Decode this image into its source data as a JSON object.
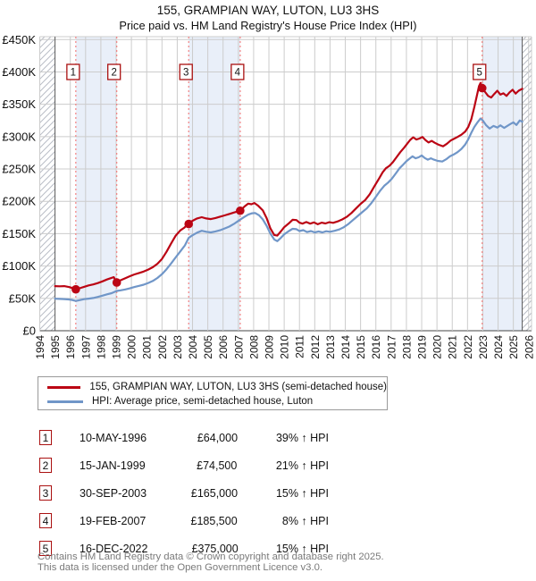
{
  "title": "155, GRAMPIAN WAY, LUTON, LU3 3HS",
  "subtitle": "Price paid vs. HM Land Registry's House Price Index (HPI)",
  "chart_data": {
    "type": "line",
    "title": "Price paid vs. HM Land Registry's House Price Index (HPI)",
    "ylim": [
      0,
      450000
    ],
    "y_ticks_k": [
      0,
      50,
      100,
      150,
      200,
      250,
      300,
      350,
      400,
      450
    ],
    "y_tick_labels": [
      "£0",
      "£50K",
      "£100K",
      "£150K",
      "£200K",
      "£250K",
      "£300K",
      "£350K",
      "£400K",
      "£450K"
    ],
    "x_tick_years": [
      1994,
      1995,
      1996,
      1997,
      1998,
      1999,
      2000,
      2001,
      2002,
      2003,
      2004,
      2005,
      2006,
      2007,
      2008,
      2009,
      2010,
      2011,
      2012,
      2013,
      2014,
      2015,
      2016,
      2017,
      2018,
      2019,
      2020,
      2021,
      2022,
      2023,
      2024,
      2025,
      2026
    ],
    "data_start_year": 1995.0,
    "data_end_year": 2025.58,
    "shaded_bands": [
      [
        1996.36,
        1999.04
      ],
      [
        2003.75,
        2007.12
      ],
      [
        2022.96,
        2025.58
      ]
    ],
    "hatched_bands": [
      [
        1994,
        1995.0
      ],
      [
        2025.58,
        2026.19
      ]
    ],
    "colors": {
      "price_line": "#bb0514",
      "hpi_line": "#7096c8",
      "sale_dash": "#f28080",
      "band_fill": "#e9eff9",
      "grid": "#cccccc",
      "grid_dark": "#5a5a5a",
      "hatch": "#b9bdc6",
      "badge_border": "#aa1111"
    },
    "sales": [
      {
        "label": "1",
        "date": "10-MAY-1996",
        "year": 1996.36,
        "price": 64000,
        "price_label": "£64,000",
        "hpi_delta": "39% ↑ HPI"
      },
      {
        "label": "2",
        "date": "15-JAN-1999",
        "year": 1999.04,
        "price": 74500,
        "price_label": "£74,500",
        "hpi_delta": "21% ↑ HPI"
      },
      {
        "label": "3",
        "date": "30-SEP-2003",
        "year": 2003.75,
        "price": 165000,
        "price_label": "£165,000",
        "hpi_delta": "15% ↑ HPI"
      },
      {
        "label": "4",
        "date": "19-FEB-2007",
        "year": 2007.12,
        "price": 185500,
        "price_label": "£185,500",
        "hpi_delta": "8% ↑ HPI"
      },
      {
        "label": "5",
        "date": "16-DEC-2022",
        "year": 2022.96,
        "price": 375000,
        "price_label": "£375,000",
        "hpi_delta": "15% ↑ HPI"
      }
    ],
    "series": [
      {
        "name": "155, GRAMPIAN WAY, LUTON, LU3 3HS (semi-detached house)",
        "color": "#bb0514",
        "points_year_gbpK": [
          [
            1995.0,
            69
          ],
          [
            1995.3,
            68.6
          ],
          [
            1995.6,
            68.9
          ],
          [
            1995.9,
            67.6
          ],
          [
            1996.1,
            66.3
          ],
          [
            1996.36,
            64
          ],
          [
            1996.6,
            65.6
          ],
          [
            1996.9,
            67.8
          ],
          [
            1997.2,
            70
          ],
          [
            1997.5,
            71.6
          ],
          [
            1997.8,
            73.6
          ],
          [
            1998.1,
            76.2
          ],
          [
            1998.4,
            79.2
          ],
          [
            1998.65,
            81.3
          ],
          [
            1998.85,
            82.7
          ],
          [
            1999.04,
            74.5
          ],
          [
            1999.3,
            78
          ],
          [
            1999.6,
            81.2
          ],
          [
            1999.9,
            84.3
          ],
          [
            2000.2,
            87
          ],
          [
            2000.5,
            89.2
          ],
          [
            2000.8,
            91.4
          ],
          [
            2001.1,
            94.5
          ],
          [
            2001.4,
            98.3
          ],
          [
            2001.7,
            103.5
          ],
          [
            2002.0,
            111
          ],
          [
            2002.3,
            122
          ],
          [
            2002.6,
            135
          ],
          [
            2002.9,
            147
          ],
          [
            2003.2,
            155
          ],
          [
            2003.45,
            159
          ],
          [
            2003.6,
            162.5
          ],
          [
            2003.75,
            165
          ],
          [
            2004.0,
            170
          ],
          [
            2004.3,
            173.5
          ],
          [
            2004.6,
            175.5
          ],
          [
            2004.9,
            173.5
          ],
          [
            2005.2,
            172.5
          ],
          [
            2005.5,
            174.2
          ],
          [
            2005.8,
            176.3
          ],
          [
            2006.1,
            178.2
          ],
          [
            2006.4,
            180.4
          ],
          [
            2006.7,
            182.6
          ],
          [
            2006.95,
            184.3
          ],
          [
            2007.12,
            185.5
          ],
          [
            2007.4,
            192
          ],
          [
            2007.65,
            196.5
          ],
          [
            2007.85,
            195.5
          ],
          [
            2008.05,
            197.5
          ],
          [
            2008.3,
            193
          ],
          [
            2008.6,
            186
          ],
          [
            2008.85,
            174
          ],
          [
            2009.1,
            158
          ],
          [
            2009.35,
            148
          ],
          [
            2009.55,
            147
          ],
          [
            2009.8,
            154
          ],
          [
            2010.0,
            160
          ],
          [
            2010.3,
            166
          ],
          [
            2010.55,
            171.5
          ],
          [
            2010.8,
            171
          ],
          [
            2011.0,
            167
          ],
          [
            2011.2,
            165.5
          ],
          [
            2011.45,
            168
          ],
          [
            2011.7,
            165.5
          ],
          [
            2011.95,
            167.5
          ],
          [
            2012.2,
            164.5
          ],
          [
            2012.45,
            167
          ],
          [
            2012.7,
            165.8
          ],
          [
            2012.95,
            167.8
          ],
          [
            2013.2,
            166.8
          ],
          [
            2013.5,
            169
          ],
          [
            2013.8,
            172
          ],
          [
            2014.1,
            176
          ],
          [
            2014.4,
            182
          ],
          [
            2014.7,
            189
          ],
          [
            2015.0,
            196
          ],
          [
            2015.3,
            202
          ],
          [
            2015.6,
            211
          ],
          [
            2015.9,
            223
          ],
          [
            2016.2,
            235
          ],
          [
            2016.45,
            245
          ],
          [
            2016.65,
            251
          ],
          [
            2016.9,
            255
          ],
          [
            2017.1,
            260
          ],
          [
            2017.35,
            268
          ],
          [
            2017.6,
            276
          ],
          [
            2017.85,
            283
          ],
          [
            2018.05,
            289
          ],
          [
            2018.25,
            295
          ],
          [
            2018.45,
            299
          ],
          [
            2018.65,
            295.5
          ],
          [
            2018.85,
            297
          ],
          [
            2019.05,
            299.5
          ],
          [
            2019.25,
            294.5
          ],
          [
            2019.45,
            291
          ],
          [
            2019.65,
            293.5
          ],
          [
            2019.85,
            290.5
          ],
          [
            2020.1,
            287.5
          ],
          [
            2020.4,
            285
          ],
          [
            2020.65,
            289
          ],
          [
            2020.9,
            294
          ],
          [
            2021.1,
            296.5
          ],
          [
            2021.35,
            299.5
          ],
          [
            2021.6,
            303
          ],
          [
            2021.85,
            308
          ],
          [
            2022.05,
            315
          ],
          [
            2022.25,
            327
          ],
          [
            2022.45,
            346
          ],
          [
            2022.6,
            362
          ],
          [
            2022.75,
            378
          ],
          [
            2022.85,
            383
          ],
          [
            2022.96,
            375
          ],
          [
            2023.15,
            369
          ],
          [
            2023.35,
            363
          ],
          [
            2023.55,
            360.5
          ],
          [
            2023.75,
            366
          ],
          [
            2023.95,
            371
          ],
          [
            2024.15,
            365
          ],
          [
            2024.35,
            367
          ],
          [
            2024.55,
            363
          ],
          [
            2024.75,
            368.5
          ],
          [
            2024.95,
            372.5
          ],
          [
            2025.15,
            366.5
          ],
          [
            2025.35,
            371
          ],
          [
            2025.58,
            374
          ]
        ]
      },
      {
        "name": "HPI: Average price, semi-detached house, Luton",
        "color": "#7096c8",
        "points_year_gbpK": [
          [
            1995.0,
            49.5
          ],
          [
            1995.3,
            49.2
          ],
          [
            1995.6,
            48.9
          ],
          [
            1995.9,
            48.3
          ],
          [
            1996.1,
            47.6
          ],
          [
            1996.36,
            46
          ],
          [
            1996.6,
            47.2
          ],
          [
            1996.9,
            48.8
          ],
          [
            1997.2,
            49.6
          ],
          [
            1997.5,
            50.6
          ],
          [
            1997.8,
            52.2
          ],
          [
            1998.1,
            54.2
          ],
          [
            1998.4,
            56.2
          ],
          [
            1998.7,
            58
          ],
          [
            1999.04,
            61.5
          ],
          [
            1999.3,
            62.5
          ],
          [
            1999.6,
            63.8
          ],
          [
            1999.9,
            65.5
          ],
          [
            2000.2,
            67.5
          ],
          [
            2000.5,
            69.3
          ],
          [
            2000.8,
            71.2
          ],
          [
            2001.1,
            73.8
          ],
          [
            2001.4,
            77
          ],
          [
            2001.7,
            81.5
          ],
          [
            2002.0,
            87.5
          ],
          [
            2002.3,
            95
          ],
          [
            2002.6,
            104
          ],
          [
            2002.9,
            113.5
          ],
          [
            2003.2,
            122.5
          ],
          [
            2003.5,
            132
          ],
          [
            2003.75,
            143.5
          ],
          [
            2004.0,
            147.5
          ],
          [
            2004.3,
            151.5
          ],
          [
            2004.6,
            154.5
          ],
          [
            2004.9,
            153
          ],
          [
            2005.2,
            152
          ],
          [
            2005.5,
            153.5
          ],
          [
            2005.8,
            155.3
          ],
          [
            2006.1,
            158
          ],
          [
            2006.4,
            161
          ],
          [
            2006.7,
            165
          ],
          [
            2006.95,
            169
          ],
          [
            2007.12,
            171.8
          ],
          [
            2007.4,
            176
          ],
          [
            2007.65,
            179.5
          ],
          [
            2007.9,
            181.5
          ],
          [
            2008.1,
            182
          ],
          [
            2008.35,
            178.5
          ],
          [
            2008.6,
            172
          ],
          [
            2008.85,
            162
          ],
          [
            2009.1,
            150
          ],
          [
            2009.35,
            141
          ],
          [
            2009.55,
            138.5
          ],
          [
            2009.8,
            144
          ],
          [
            2010.0,
            149
          ],
          [
            2010.3,
            154
          ],
          [
            2010.55,
            157.5
          ],
          [
            2010.8,
            157
          ],
          [
            2011.0,
            154
          ],
          [
            2011.25,
            155.5
          ],
          [
            2011.5,
            152.5
          ],
          [
            2011.75,
            154
          ],
          [
            2012.0,
            152
          ],
          [
            2012.25,
            153.5
          ],
          [
            2012.5,
            152
          ],
          [
            2012.75,
            153.8
          ],
          [
            2013.0,
            153
          ],
          [
            2013.3,
            154.5
          ],
          [
            2013.6,
            156.5
          ],
          [
            2013.9,
            160
          ],
          [
            2014.2,
            165
          ],
          [
            2014.5,
            171
          ],
          [
            2014.8,
            177
          ],
          [
            2015.1,
            183
          ],
          [
            2015.4,
            189
          ],
          [
            2015.7,
            197
          ],
          [
            2016.0,
            207
          ],
          [
            2016.3,
            217
          ],
          [
            2016.55,
            224
          ],
          [
            2016.8,
            229
          ],
          [
            2017.05,
            235
          ],
          [
            2017.3,
            243
          ],
          [
            2017.55,
            251
          ],
          [
            2017.8,
            257
          ],
          [
            2018.0,
            262
          ],
          [
            2018.2,
            266
          ],
          [
            2018.4,
            269.5
          ],
          [
            2018.6,
            266.5
          ],
          [
            2018.8,
            268
          ],
          [
            2019.0,
            271
          ],
          [
            2019.2,
            267
          ],
          [
            2019.4,
            264.5
          ],
          [
            2019.6,
            266.5
          ],
          [
            2019.8,
            264.5
          ],
          [
            2020.05,
            262.5
          ],
          [
            2020.35,
            261.5
          ],
          [
            2020.6,
            265
          ],
          [
            2020.85,
            269.5
          ],
          [
            2021.1,
            272.5
          ],
          [
            2021.35,
            276
          ],
          [
            2021.6,
            281
          ],
          [
            2021.85,
            288
          ],
          [
            2022.05,
            296
          ],
          [
            2022.25,
            306
          ],
          [
            2022.45,
            315
          ],
          [
            2022.65,
            322
          ],
          [
            2022.85,
            328
          ],
          [
            2023.0,
            325
          ],
          [
            2023.2,
            318
          ],
          [
            2023.45,
            312.5
          ],
          [
            2023.7,
            316.5
          ],
          [
            2023.95,
            314
          ],
          [
            2024.15,
            317.5
          ],
          [
            2024.4,
            313.5
          ],
          [
            2024.6,
            316.5
          ],
          [
            2024.8,
            319.5
          ],
          [
            2025.0,
            322
          ],
          [
            2025.2,
            318
          ],
          [
            2025.42,
            325
          ],
          [
            2025.58,
            323
          ]
        ]
      }
    ]
  },
  "legend": {
    "items": [
      {
        "label": "155, GRAMPIAN WAY, LUTON, LU3 3HS (semi-detached house)",
        "color": "#bb0514"
      },
      {
        "label": "HPI: Average price, semi-detached house, Luton",
        "color": "#7096c8"
      }
    ]
  },
  "footer": {
    "line1": "Contains HM Land Registry data © Crown copyright and database right 2025.",
    "line2": "This data is licensed under the Open Government Licence v3.0."
  }
}
